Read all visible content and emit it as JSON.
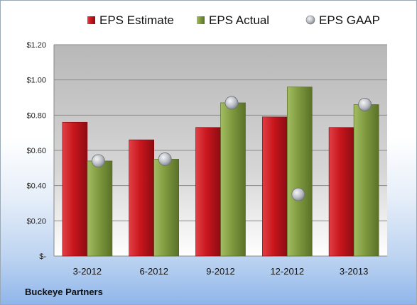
{
  "company": "Buckeye Partners",
  "chart_data": {
    "type": "bar",
    "categories": [
      "3-2012",
      "6-2012",
      "9-2012",
      "12-2012",
      "3-2013"
    ],
    "series": [
      {
        "name": "EPS Estimate",
        "kind": "bar",
        "color": "#c8161d",
        "values": [
          0.76,
          0.66,
          0.73,
          0.79,
          0.73
        ]
      },
      {
        "name": "EPS Actual",
        "kind": "bar",
        "color": "#7f9a3f",
        "values": [
          0.54,
          0.55,
          0.87,
          0.96,
          0.86
        ]
      },
      {
        "name": "EPS GAAP",
        "kind": "marker",
        "color": "#b9bcc2",
        "values": [
          0.54,
          0.55,
          0.87,
          0.35,
          0.86
        ]
      }
    ],
    "ylim": [
      0,
      1.2
    ],
    "yticks": [
      {
        "value": 0,
        "label": "$-"
      },
      {
        "value": 0.2,
        "label": "$0.20"
      },
      {
        "value": 0.4,
        "label": "$0.40"
      },
      {
        "value": 0.6,
        "label": "$0.60"
      },
      {
        "value": 0.8,
        "label": "$0.80"
      },
      {
        "value": 1.0,
        "label": "$1.00"
      },
      {
        "value": 1.2,
        "label": "$1.20"
      }
    ],
    "grid": true,
    "legend_position": "top"
  }
}
